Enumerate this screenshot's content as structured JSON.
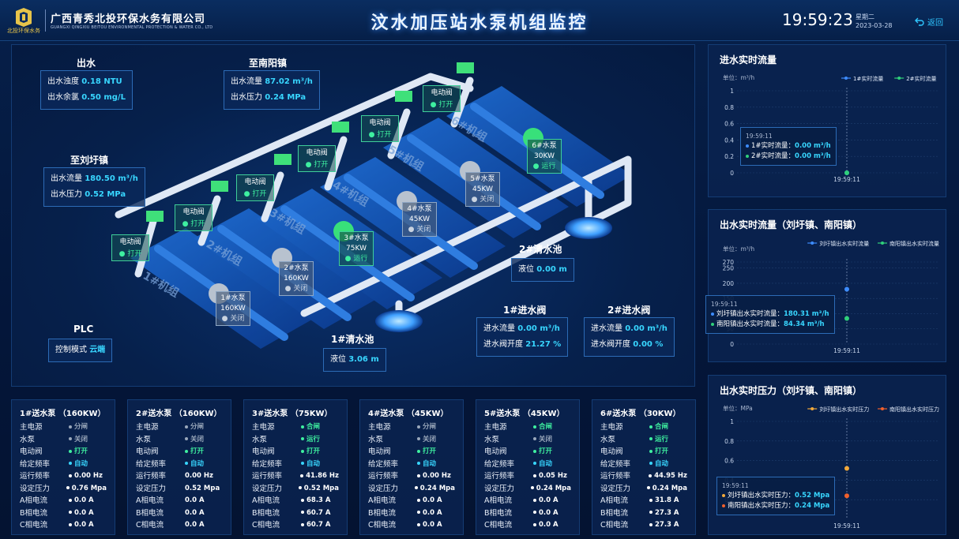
{
  "header": {
    "company_cn": "广西青秀北投环保水务有限公司",
    "company_en": "GUANGXI QINGXIU BEITOU ENVIRONMENTAL PROTECTION & WATER CO., LTD",
    "logo_text": "北投环保水务",
    "title": "汶水加压站水泵机组监控",
    "time": "19:59:23",
    "weekday": "星期二",
    "date": "2023-03-28",
    "back_label": "返回"
  },
  "outlet": {
    "title": "出水",
    "rows": [
      {
        "k": "出水浊度",
        "v": "0.18 NTU"
      },
      {
        "k": "出水余氯",
        "v": "0.50 mg/L"
      }
    ]
  },
  "nanyang": {
    "title": "至南阳镇",
    "rows": [
      {
        "k": "出水流量",
        "v": "87.02 m³/h"
      },
      {
        "k": "出水压力",
        "v": "0.24 MPa"
      }
    ]
  },
  "liuxu": {
    "title": "至刘圩镇",
    "rows": [
      {
        "k": "出水流量",
        "v": "180.50 m³/h"
      },
      {
        "k": "出水压力",
        "v": "0.52 MPa"
      }
    ]
  },
  "plc": {
    "title": "PLC",
    "k": "控制模式",
    "v": "云端"
  },
  "pool1": {
    "title": "1#清水池",
    "k": "液位",
    "v": "3.06 m"
  },
  "pool2": {
    "title": "2#清水池",
    "k": "液位",
    "v": "0.00 m"
  },
  "inlet1": {
    "title": "1#进水阀",
    "rows": [
      {
        "k": "进水流量",
        "v": "0.00 m³/h"
      },
      {
        "k": "进水阀开度",
        "v": "21.27 %"
      }
    ]
  },
  "inlet2": {
    "title": "2#进水阀",
    "rows": [
      {
        "k": "进水流量",
        "v": "0.00 m³/h"
      },
      {
        "k": "进水阀开度",
        "v": "0.00 %"
      }
    ]
  },
  "valves": [
    {
      "name": "电动阀",
      "state": "打开"
    },
    {
      "name": "电动阀",
      "state": "打开"
    },
    {
      "name": "电动阀",
      "state": "打开"
    },
    {
      "name": "电动阀",
      "state": "打开"
    },
    {
      "name": "电动阀",
      "state": "打开"
    },
    {
      "name": "电动阀",
      "state": "打开"
    }
  ],
  "pumps": [
    {
      "name": "1#水泵",
      "power": "160KW",
      "state": "关闭",
      "on": false
    },
    {
      "name": "2#水泵",
      "power": "160KW",
      "state": "关闭",
      "on": false
    },
    {
      "name": "3#水泵",
      "power": "75KW",
      "state": "运行",
      "on": true
    },
    {
      "name": "4#水泵",
      "power": "45KW",
      "state": "关闭",
      "on": false
    },
    {
      "name": "5#水泵",
      "power": "45KW",
      "state": "关闭",
      "on": false
    },
    {
      "name": "6#水泵",
      "power": "30KW",
      "state": "运行",
      "on": true
    }
  ],
  "units": [
    "1#机组",
    "2#机组",
    "3#机组",
    "4#机组",
    "5#机组",
    "6#机组"
  ],
  "row_keys": [
    "主电源",
    "水泵",
    "电动阀",
    "给定频率",
    "运行频率",
    "设定压力",
    "A相电流",
    "B相电流",
    "C相电流"
  ],
  "colors": {
    "green": "#3ef0a0",
    "gray": "#9aa8bb",
    "cyan": "#38d6ff",
    "white": "#ffffff",
    "series_blue": "#3d8cff",
    "series_green": "#2fd07a",
    "series_orange": "#f2a93b",
    "series_red": "#f0602c"
  },
  "cards": [
    {
      "title": "1#送水泵 （160KW）",
      "values": [
        {
          "v": "分闸",
          "c": "gray",
          "d": 1
        },
        {
          "v": "关闭",
          "c": "gray",
          "d": 1
        },
        {
          "v": "打开",
          "c": "green",
          "d": 1
        },
        {
          "v": "自动",
          "c": "cyan",
          "d": 1
        },
        {
          "v": "0.00 Hz",
          "c": "white",
          "d": 1
        },
        {
          "v": "0.76 Mpa",
          "c": "white",
          "d": 1
        },
        {
          "v": "0.0 A",
          "c": "white",
          "d": 1
        },
        {
          "v": "0.0 A",
          "c": "white",
          "d": 1
        },
        {
          "v": "0.0 A",
          "c": "white",
          "d": 1
        }
      ]
    },
    {
      "title": "2#送水泵 （160KW）",
      "values": [
        {
          "v": "分闸",
          "c": "gray",
          "d": 1
        },
        {
          "v": "关闭",
          "c": "gray",
          "d": 1
        },
        {
          "v": "打开",
          "c": "green",
          "d": 1
        },
        {
          "v": "自动",
          "c": "cyan",
          "d": 1
        },
        {
          "v": "0.00 Hz",
          "c": "white",
          "d": 0
        },
        {
          "v": "0.52 Mpa",
          "c": "white",
          "d": 0
        },
        {
          "v": "0.0 A",
          "c": "white",
          "d": 0
        },
        {
          "v": "0.0 A",
          "c": "white",
          "d": 0
        },
        {
          "v": "0.0 A",
          "c": "white",
          "d": 0
        }
      ]
    },
    {
      "title": "3#送水泵 （75KW）",
      "values": [
        {
          "v": "合闸",
          "c": "green",
          "d": 1
        },
        {
          "v": "运行",
          "c": "green",
          "d": 1
        },
        {
          "v": "打开",
          "c": "green",
          "d": 1
        },
        {
          "v": "自动",
          "c": "cyan",
          "d": 1
        },
        {
          "v": "41.86 Hz",
          "c": "white",
          "d": 1
        },
        {
          "v": "0.52 Mpa",
          "c": "white",
          "d": 1
        },
        {
          "v": "68.3 A",
          "c": "white",
          "d": 1
        },
        {
          "v": "60.7 A",
          "c": "white",
          "d": 1
        },
        {
          "v": "60.7 A",
          "c": "white",
          "d": 1
        }
      ]
    },
    {
      "title": "4#送水泵 （45KW）",
      "values": [
        {
          "v": "分闸",
          "c": "gray",
          "d": 1
        },
        {
          "v": "关闭",
          "c": "gray",
          "d": 1
        },
        {
          "v": "打开",
          "c": "green",
          "d": 1
        },
        {
          "v": "自动",
          "c": "cyan",
          "d": 1
        },
        {
          "v": "0.00 Hz",
          "c": "white",
          "d": 1
        },
        {
          "v": "0.24 Mpa",
          "c": "white",
          "d": 1
        },
        {
          "v": "0.0 A",
          "c": "white",
          "d": 1
        },
        {
          "v": "0.0 A",
          "c": "white",
          "d": 1
        },
        {
          "v": "0.0 A",
          "c": "white",
          "d": 1
        }
      ]
    },
    {
      "title": "5#送水泵 （45KW）",
      "values": [
        {
          "v": "合闸",
          "c": "green",
          "d": 1
        },
        {
          "v": "关闭",
          "c": "gray",
          "d": 1
        },
        {
          "v": "打开",
          "c": "green",
          "d": 1
        },
        {
          "v": "自动",
          "c": "cyan",
          "d": 1
        },
        {
          "v": "0.05 Hz",
          "c": "white",
          "d": 1
        },
        {
          "v": "0.24 Mpa",
          "c": "white",
          "d": 1
        },
        {
          "v": "0.0 A",
          "c": "white",
          "d": 1
        },
        {
          "v": "0.0 A",
          "c": "white",
          "d": 1
        },
        {
          "v": "0.0 A",
          "c": "white",
          "d": 1
        }
      ]
    },
    {
      "title": "6#送水泵 （30KW）",
      "values": [
        {
          "v": "合闸",
          "c": "green",
          "d": 1
        },
        {
          "v": "运行",
          "c": "green",
          "d": 1
        },
        {
          "v": "打开",
          "c": "green",
          "d": 1
        },
        {
          "v": "自动",
          "c": "cyan",
          "d": 1
        },
        {
          "v": "44.95 Hz",
          "c": "white",
          "d": 1
        },
        {
          "v": "0.24 Mpa",
          "c": "white",
          "d": 1
        },
        {
          "v": "31.8 A",
          "c": "white",
          "d": 1
        },
        {
          "v": "27.3 A",
          "c": "white",
          "d": 1
        },
        {
          "v": "27.3 A",
          "c": "white",
          "d": 1
        }
      ]
    }
  ],
  "chart_data": [
    {
      "type": "line",
      "title": "进水实时流量",
      "ylabel": "单位：m³/h",
      "ylim": [
        0,
        1
      ],
      "yticks": [
        "0",
        "0.2",
        "0.4",
        "0.6",
        "0.8",
        "1"
      ],
      "categories": [
        "19:59:11"
      ],
      "legend_position": "top-right",
      "series": [
        {
          "name": "1#实时流量",
          "values": [
            0.0
          ],
          "color": "#3d8cff"
        },
        {
          "name": "2#实时流量",
          "values": [
            0.0
          ],
          "color": "#2fd07a"
        }
      ],
      "tooltip": {
        "time": "19:59:11",
        "lines": [
          {
            "label": "1#实时流量：",
            "value": "0.00 m³/h"
          },
          {
            "label": "2#实时流量：",
            "value": "0.00 m³/h"
          }
        ]
      }
    },
    {
      "type": "line",
      "title": "出水实时流量（刘圩镇、南阳镇）",
      "ylabel": "单位：m³/h",
      "ylim": [
        0,
        270
      ],
      "yticks": [
        "0",
        "50",
        "100",
        "150",
        "200",
        "250",
        "270"
      ],
      "categories": [
        "19:59:11"
      ],
      "legend_position": "top-right",
      "series": [
        {
          "name": "刘圩镇出水实时流量",
          "values": [
            180.31
          ],
          "color": "#3d8cff"
        },
        {
          "name": "南阳镇出水实时流量",
          "values": [
            84.34
          ],
          "color": "#2fd07a"
        }
      ],
      "tooltip": {
        "time": "19:59:11",
        "lines": [
          {
            "label": "刘圩镇出水实时流量：",
            "value": "180.31 m³/h"
          },
          {
            "label": "南阳镇出水实时流量：",
            "value": "84.34 m³/h"
          }
        ]
      }
    },
    {
      "type": "line",
      "title": "出水实时压力（刘圩镇、南阳镇）",
      "ylabel": "单位：MPa",
      "ylim": [
        0,
        1
      ],
      "yticks": [
        "0.2",
        "0.4",
        "0.6",
        "0.8",
        "1"
      ],
      "categories": [
        "19:59:11"
      ],
      "legend_position": "top-right",
      "series": [
        {
          "name": "刘圩镇出水实时压力",
          "values": [
            0.52
          ],
          "color": "#f2a93b"
        },
        {
          "name": "南阳镇出水实时压力",
          "values": [
            0.24
          ],
          "color": "#f0602c"
        }
      ],
      "tooltip": {
        "time": "19:59:11",
        "lines": [
          {
            "label": "刘圩镇出水实时压力：",
            "value": "0.52 Mpa"
          },
          {
            "label": "南阳镇出水实时压力：",
            "value": "0.24 Mpa"
          }
        ]
      }
    }
  ]
}
